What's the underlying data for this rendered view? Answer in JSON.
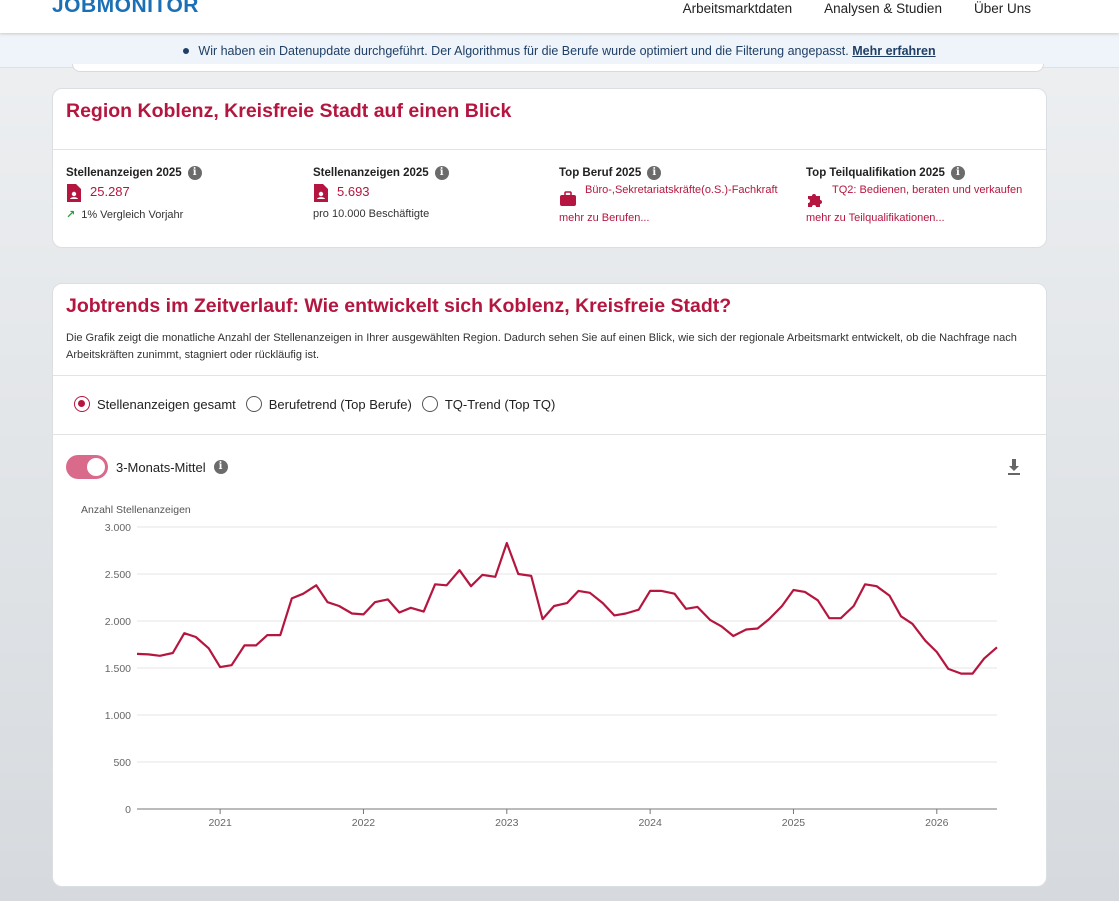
{
  "header": {
    "logo": "JOBMONITOR",
    "nav": [
      "Arbeitsmarktdaten",
      "Analysen & Studien",
      "Über Uns"
    ]
  },
  "banner": {
    "text": "Wir haben ein Datenupdate durchgeführt. Der Algorithmus für die Berufe wurde optimiert und die Filterung angepasst.",
    "link": "Mehr erfahren"
  },
  "overview": {
    "title": "Region Koblenz, Kreisfreie Stadt auf einen Blick",
    "kpis": [
      {
        "label": "Stellenanzeigen 2025",
        "value": "25.287",
        "foot": "1% Vergleich Vorjahr"
      },
      {
        "label": "Stellenanzeigen 2025",
        "value": "5.693",
        "foot": "pro 10.000 Beschäftigte"
      },
      {
        "label": "Top Beruf 2025",
        "value": "Büro-,Sekretariatskräfte(o.S.)-Fachkraft",
        "foot": "mehr zu Berufen..."
      },
      {
        "label": "Top Teilqualifikation 2025",
        "value": "TQ2: Bedienen, beraten und verkaufen",
        "foot": "mehr zu Teilqualifikationen..."
      }
    ]
  },
  "trends": {
    "title": "Jobtrends im Zeitverlauf: Wie entwickelt sich Koblenz, Kreisfreie Stadt?",
    "description": "Die Grafik zeigt die monatliche Anzahl der Stellenanzeigen in Ihrer ausgewählten Region. Dadurch sehen Sie auf einen Blick, wie sich der regionale Arbeitsmarkt entwickelt, ob die Nachfrage nach Arbeitskräften zunimmt, stagniert oder rückläufig ist.",
    "options": [
      "Stellenanzeigen gesamt",
      "Berufetrend (Top Berufe)",
      "TQ-Trend (Top TQ)"
    ],
    "selected_option": "Stellenanzeigen gesamt",
    "toggle_label": "3-Monats-Mittel",
    "toggle_on": true
  },
  "chart_data": {
    "type": "line",
    "title": "",
    "xlabel": "",
    "ylabel": "Anzahl Stellenanzeigen",
    "ylim": [
      0,
      3000
    ],
    "yticks": [
      0,
      500,
      1000,
      1500,
      2000,
      2500,
      3000
    ],
    "ytick_labels": [
      "0",
      "500",
      "1.000",
      "1.500",
      "2.000",
      "2.500",
      "3.000"
    ],
    "xlim": [
      2020.42,
      2026.42
    ],
    "xticks": [
      2021,
      2022,
      2023,
      2024,
      2025,
      2026
    ],
    "xtick_labels": [
      "2021",
      "2022",
      "2023",
      "2024",
      "2025",
      "2026"
    ],
    "grid": true,
    "color": "#b5163f",
    "series": [
      {
        "x": [
          2020.42,
          2020.5,
          2020.58,
          2020.67,
          2020.75,
          2020.83,
          2020.92,
          2021.0,
          2021.08,
          2021.17,
          2021.25,
          2021.33,
          2021.42,
          2021.5,
          2021.58,
          2021.67,
          2021.75,
          2021.83,
          2021.92,
          2022.0,
          2022.08,
          2022.17,
          2022.25,
          2022.33,
          2022.42,
          2022.5,
          2022.58,
          2022.67,
          2022.75,
          2022.83,
          2022.92,
          2023.0,
          2023.08,
          2023.17,
          2023.25,
          2023.33,
          2023.42,
          2023.5,
          2023.58,
          2023.67,
          2023.75,
          2023.83,
          2023.92,
          2024.0,
          2024.08,
          2024.17,
          2024.25,
          2024.33,
          2024.42,
          2024.5,
          2024.58,
          2024.67,
          2024.75,
          2024.83,
          2024.92,
          2025.0,
          2025.08,
          2025.17,
          2025.25,
          2025.33,
          2025.42,
          2025.5,
          2025.58,
          2025.67,
          2025.75,
          2025.83,
          2025.92,
          2026.0,
          2026.08,
          2026.17,
          2026.25,
          2026.33,
          2026.42
        ],
        "values": [
          1650,
          1645,
          1630,
          1660,
          1870,
          1830,
          1710,
          1510,
          1530,
          1740,
          1740,
          1850,
          1850,
          2240,
          2290,
          2380,
          2200,
          2160,
          2080,
          2070,
          2200,
          2230,
          2090,
          2140,
          2100,
          2390,
          2380,
          2540,
          2370,
          2490,
          2470,
          2830,
          2500,
          2480,
          2020,
          2160,
          2190,
          2320,
          2300,
          2190,
          2060,
          2080,
          2120,
          2320,
          2320,
          2290,
          2130,
          2150,
          2010,
          1940,
          1840,
          1910,
          1920,
          2020,
          2160,
          2330,
          2310,
          2220,
          2030,
          2030,
          2160,
          2390,
          2370,
          2270,
          2050,
          1970,
          1790,
          1670,
          1490,
          1440,
          1440,
          1600,
          1720
        ]
      }
    ]
  }
}
